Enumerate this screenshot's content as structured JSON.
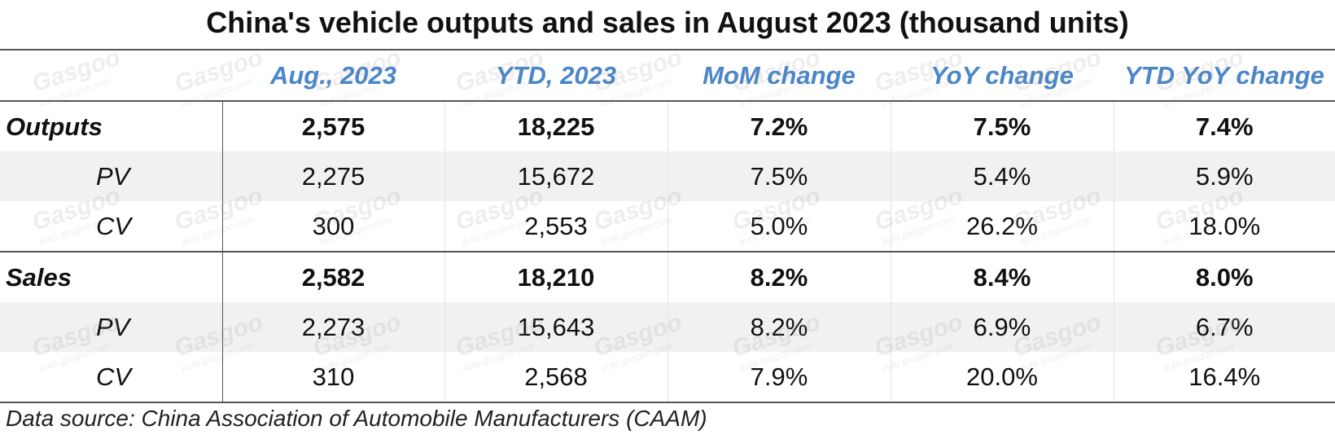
{
  "chart_data": {
    "type": "table",
    "title": "China's vehicle outputs and sales in August 2023 (thousand units)",
    "columns": [
      "",
      "Aug., 2023",
      "YTD, 2023",
      "MoM change",
      "YoY change",
      "YTD YoY change"
    ],
    "rows": [
      {
        "label": "Outputs",
        "level": "group",
        "shaded": false,
        "values": [
          "2,575",
          "18,225",
          "7.2%",
          "7.5%",
          "7.4%"
        ]
      },
      {
        "label": "PV",
        "level": "sub",
        "shaded": true,
        "values": [
          "2,275",
          "15,672",
          "7.5%",
          "5.4%",
          "5.9%"
        ]
      },
      {
        "label": "CV",
        "level": "sub",
        "shaded": false,
        "values": [
          "300",
          "2,553",
          "5.0%",
          "26.2%",
          "18.0%"
        ]
      },
      {
        "label": "Sales",
        "level": "group",
        "shaded": false,
        "values": [
          "2,582",
          "18,210",
          "8.2%",
          "8.4%",
          "8.0%"
        ]
      },
      {
        "label": "PV",
        "level": "sub",
        "shaded": true,
        "values": [
          "2,273",
          "15,643",
          "8.2%",
          "6.9%",
          "6.7%"
        ]
      },
      {
        "label": "CV",
        "level": "sub",
        "shaded": false,
        "values": [
          "310",
          "2,568",
          "7.9%",
          "20.0%",
          "16.4%"
        ]
      }
    ],
    "source": "Data source: China Association of Automobile Manufacturers (CAAM)",
    "header_color": "#4a86c8",
    "shade_color": "#f1f1f1",
    "watermark": {
      "brand": "Gasgoo",
      "url": "auto.gasgoo.com"
    }
  }
}
